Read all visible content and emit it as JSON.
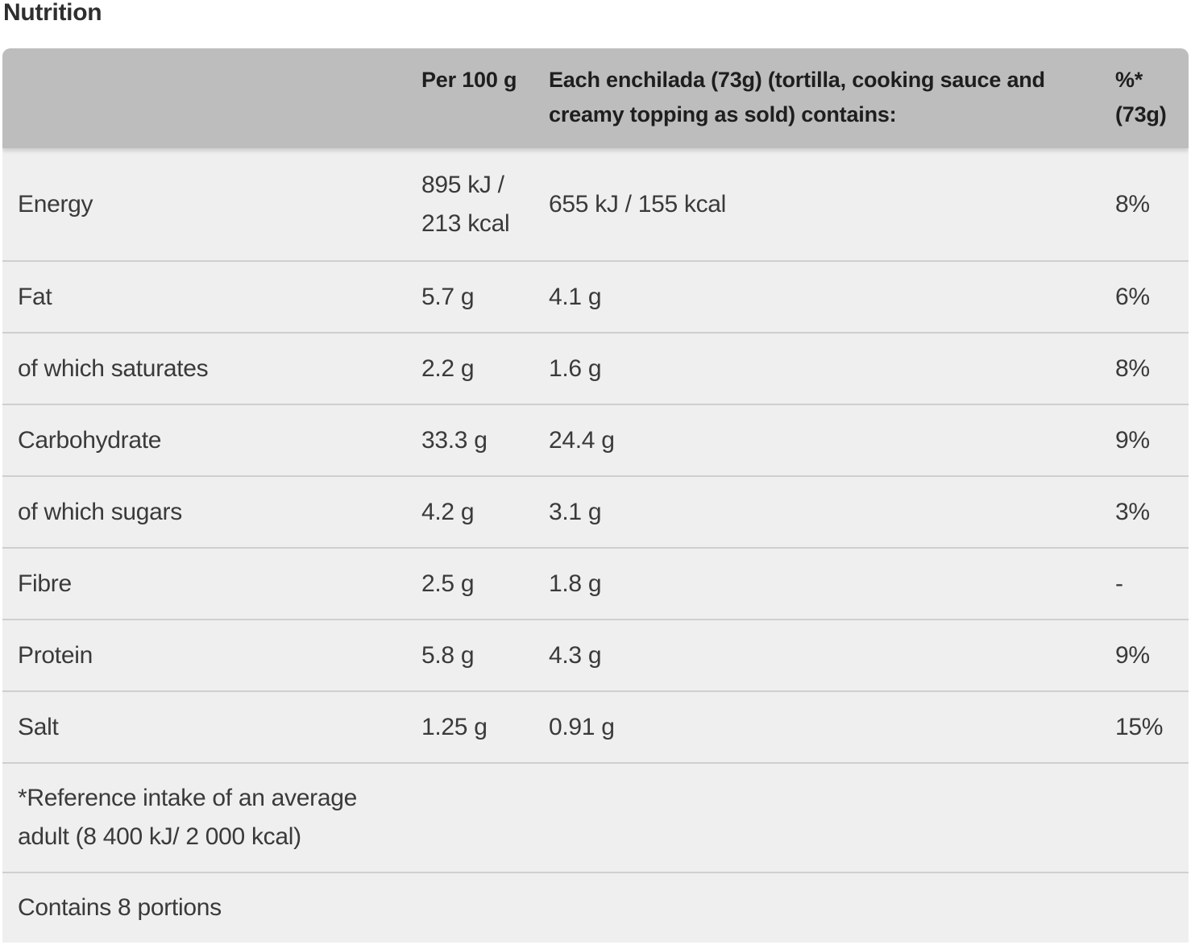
{
  "section_title": "Nutrition",
  "table": {
    "headers": {
      "nutrient": "",
      "per100": "Per 100 g",
      "per_serving": "Each enchilada (73g) (tortilla, cooking sauce and creamy topping as sold) contains:",
      "percent_ri": "%* (73g)"
    },
    "rows": [
      {
        "nutrient": "Energy",
        "per100": "895 kJ / 213 kcal",
        "per_serving": "655 kJ / 155 kcal",
        "percent_ri": "8%"
      },
      {
        "nutrient": "Fat",
        "per100": "5.7 g",
        "per_serving": "4.1 g",
        "percent_ri": "6%"
      },
      {
        "nutrient": "of which saturates",
        "per100": "2.2 g",
        "per_serving": "1.6 g",
        "percent_ri": "8%"
      },
      {
        "nutrient": "Carbohydrate",
        "per100": "33.3 g",
        "per_serving": "24.4 g",
        "percent_ri": "9%"
      },
      {
        "nutrient": "of which sugars",
        "per100": "4.2 g",
        "per_serving": "3.1 g",
        "percent_ri": "3%"
      },
      {
        "nutrient": "Fibre",
        "per100": "2.5 g",
        "per_serving": "1.8 g",
        "percent_ri": "-"
      },
      {
        "nutrient": "Protein",
        "per100": "5.8 g",
        "per_serving": "4.3 g",
        "percent_ri": "9%"
      },
      {
        "nutrient": "Salt",
        "per100": "1.25 g",
        "per_serving": "0.91 g",
        "percent_ri": "15%"
      }
    ],
    "footnote": "*Reference intake of an average adult (8 400 kJ/ 2 000 kcal)",
    "portions": "Contains 8 portions"
  },
  "colors": {
    "header_bg": "#bdbdbd",
    "row_bg": "#efefef",
    "divider": "#cfcfcf"
  }
}
